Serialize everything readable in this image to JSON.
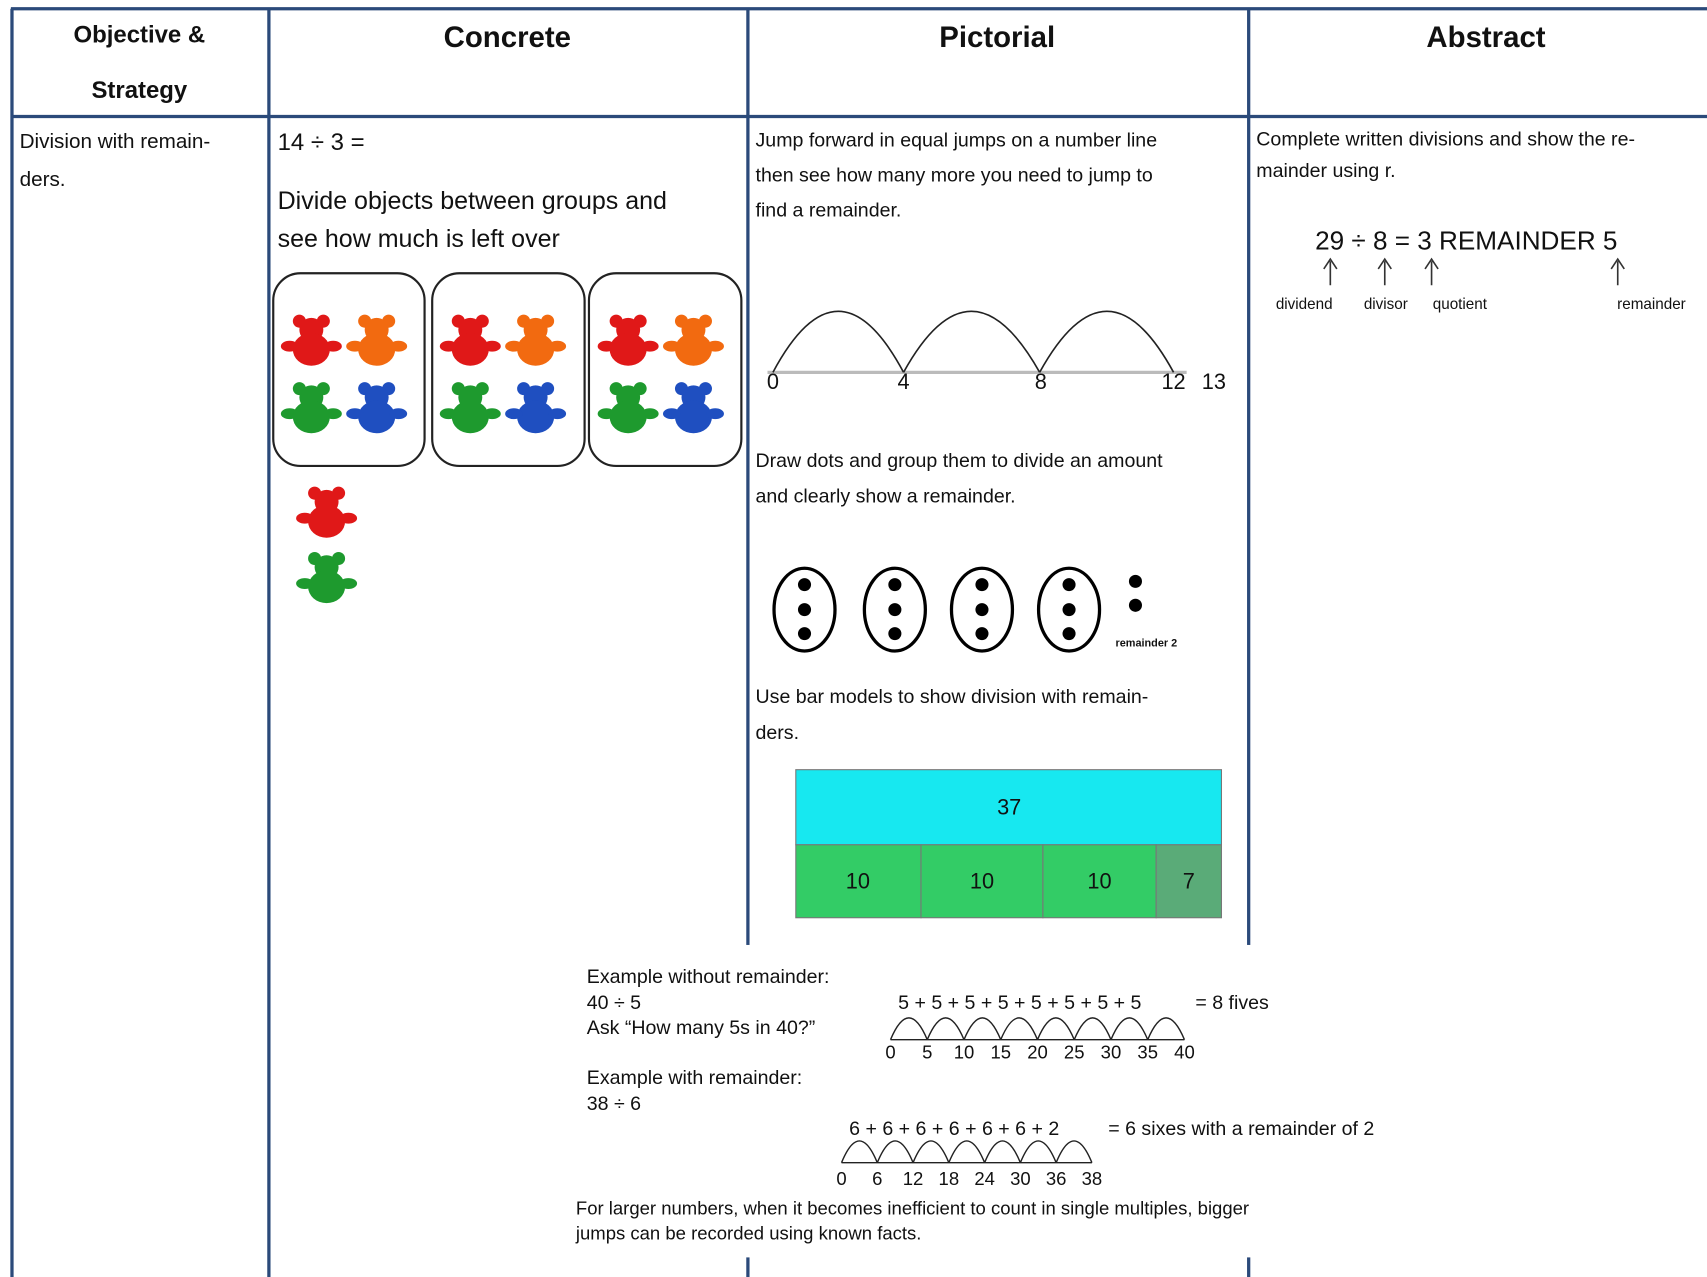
{
  "header": {
    "objective": [
      "Objective &",
      "Strategy"
    ],
    "concrete": "Concrete",
    "pictorial": "Pictorial",
    "abstract": "Abstract"
  },
  "row": {
    "objective": [
      "Division with remain-",
      "ders."
    ],
    "concrete": {
      "sum": "14 ÷ 3 =",
      "text": [
        "Divide objects between groups and",
        "see how much is left over"
      ]
    },
    "pictorial": {
      "jump_text": [
        "Jump forward in equal jumps on a number line",
        "then see how many more you need to jump to",
        "find a remainder."
      ],
      "number_line": [
        "0",
        "4",
        "8",
        "12",
        "13"
      ],
      "dots_text": [
        "Draw dots and group them to divide an amount",
        "and clearly show a remainder."
      ],
      "dots_remainder": "remainder 2",
      "bar_text": [
        "Use bar models to show division with remain-",
        "ders."
      ],
      "bar_total": "37",
      "bar_parts": [
        "10",
        "10",
        "10",
        "7"
      ]
    },
    "abstract": {
      "text": [
        "Complete written divisions and show the re-",
        "mainder using r."
      ],
      "equation": "29 ÷ 8 = 3 REMAINDER 5",
      "labels": [
        "dividend",
        "divisor",
        "quotient",
        "remainder"
      ]
    }
  },
  "examples": {
    "without_title": "Example without remainder:",
    "without_sum": "40 ÷ 5",
    "without_question": "Ask “How many 5s in 40?”",
    "without_jumps": "5 + 5 + 5 + 5 + 5 + 5 + 5 + 5",
    "without_result": "= 8 fives",
    "without_line": [
      "0",
      "5",
      "10",
      "15",
      "20",
      "25",
      "30",
      "35",
      "40"
    ],
    "with_title": "Example with remainder:",
    "with_sum": "38 ÷ 6",
    "with_jumps": "6 + 6 + 6 + 6 + 6 + 6 + 2",
    "with_result": "= 6 sixes with a remainder of 2",
    "with_line": [
      "0",
      "6",
      "12",
      "18",
      "24",
      "30",
      "36",
      "38"
    ],
    "note": [
      "For larger numbers, when it becomes inefficient to count in single multiples, bigger",
      "jumps can be recorded using known facts."
    ]
  }
}
